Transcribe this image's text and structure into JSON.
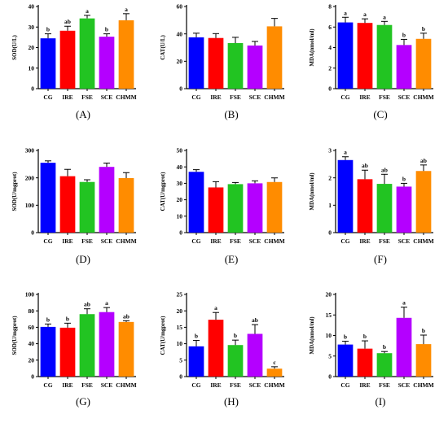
{
  "colors": [
    "#0000ff",
    "#ff0000",
    "#22c422",
    "#b400ff",
    "#ff8c00"
  ],
  "chart_data": [
    {
      "panel_label": "(A)",
      "type": "bar",
      "ylabel": "SOD(U/L)",
      "ylim": [
        0,
        40
      ],
      "yticks": [
        "0",
        "10",
        "20",
        "30",
        "40"
      ],
      "categories": [
        "CG",
        "IRE",
        "FSE",
        "SCE",
        "CHMM"
      ],
      "values": [
        24.5,
        28.2,
        34.2,
        25.3,
        33.3
      ],
      "errors": [
        2.2,
        2.2,
        1.5,
        1.4,
        3.2
      ],
      "significance": [
        "b",
        "ab",
        "a",
        "b",
        "a"
      ]
    },
    {
      "panel_label": "(B)",
      "type": "bar",
      "ylabel": "CAT(U/L)",
      "ylim": [
        0,
        60
      ],
      "yticks": [
        "0",
        "20",
        "40",
        "60"
      ],
      "categories": [
        "CG",
        "IRE",
        "FSE",
        "SCE",
        "CHMM"
      ],
      "values": [
        37.5,
        37.0,
        33.3,
        31.5,
        45.5
      ],
      "errors": [
        3.0,
        3.2,
        4.2,
        3.0,
        5.8
      ],
      "significance": [
        "",
        "",
        "",
        "",
        ""
      ]
    },
    {
      "panel_label": "(C)",
      "type": "bar",
      "ylabel": "MDA(nmol/ml)",
      "ylim": [
        0,
        8
      ],
      "yticks": [
        "0",
        "2",
        "4",
        "6",
        "8"
      ],
      "categories": [
        "CG",
        "IRE",
        "FSE",
        "SCE",
        "CHMM"
      ],
      "values": [
        6.45,
        6.4,
        6.2,
        4.25,
        4.85
      ],
      "errors": [
        0.5,
        0.4,
        0.35,
        0.55,
        0.55
      ],
      "significance": [
        "a",
        "a",
        "a",
        "b",
        "b"
      ]
    },
    {
      "panel_label": "(D)",
      "type": "bar",
      "ylabel": "SOD(U/mgprot)",
      "ylim": [
        0,
        300
      ],
      "yticks": [
        "0",
        "100",
        "200",
        "300"
      ],
      "categories": [
        "CG",
        "IRE",
        "FSE",
        "SCE",
        "CHMM"
      ],
      "values": [
        255,
        206,
        185,
        240,
        199
      ],
      "errors": [
        7,
        25,
        8,
        14,
        20
      ],
      "significance": [
        "",
        "",
        "",
        "",
        ""
      ]
    },
    {
      "panel_label": "(E)",
      "type": "bar",
      "ylabel": "CAT(U/mgprot)",
      "ylim": [
        0,
        50
      ],
      "yticks": [
        "0",
        "10",
        "20",
        "30",
        "40",
        "50"
      ],
      "categories": [
        "CG",
        "IRE",
        "FSE",
        "SCE",
        "CHMM"
      ],
      "values": [
        37.0,
        27.5,
        29.5,
        30.0,
        30.8
      ],
      "errors": [
        1.3,
        3.5,
        1.0,
        1.5,
        2.5
      ],
      "significance": [
        "",
        "",
        "",
        "",
        ""
      ]
    },
    {
      "panel_label": "(F)",
      "type": "bar",
      "ylabel": "MDA(nmol/ml)",
      "ylim": [
        0,
        3
      ],
      "yticks": [
        "0",
        "1",
        "2",
        "3"
      ],
      "categories": [
        "CG",
        "IRE",
        "FSE",
        "SCE",
        "CHMM"
      ],
      "values": [
        2.65,
        1.95,
        1.78,
        1.68,
        2.25
      ],
      "errors": [
        0.12,
        0.33,
        0.35,
        0.12,
        0.22
      ],
      "significance": [
        "a",
        "ab",
        "ab",
        "b",
        "ab"
      ]
    },
    {
      "panel_label": "(G)",
      "type": "bar",
      "ylabel": "SOD(U/mgprot)",
      "ylim": [
        0,
        100
      ],
      "yticks": [
        "0",
        "20",
        "40",
        "60",
        "80",
        "100"
      ],
      "categories": [
        "CG",
        "IRE",
        "FSE",
        "SCE",
        "CHMM"
      ],
      "values": [
        60.5,
        59.5,
        76.0,
        78.5,
        66.5
      ],
      "errors": [
        3.5,
        5.5,
        6.5,
        5.5,
        1.5
      ],
      "significance": [
        "b",
        "b",
        "ab",
        "a",
        "ab"
      ]
    },
    {
      "panel_label": "(H)",
      "type": "bar",
      "ylabel": "CAT(U/mgprot)",
      "ylim": [
        0,
        25
      ],
      "yticks": [
        "0",
        "5",
        "10",
        "15",
        "20",
        "25"
      ],
      "categories": [
        "CG",
        "IRE",
        "FSE",
        "SCE",
        "CHMM"
      ],
      "values": [
        9.2,
        17.3,
        9.6,
        13.0,
        2.4
      ],
      "errors": [
        1.8,
        2.2,
        1.5,
        2.8,
        0.6
      ],
      "significance": [
        "b",
        "a",
        "b",
        "ab",
        "c"
      ]
    },
    {
      "panel_label": "(I)",
      "type": "bar",
      "ylabel": "MDA(nmol/ml)",
      "ylim": [
        0,
        20
      ],
      "yticks": [
        "0",
        "5",
        "10",
        "15",
        "20"
      ],
      "categories": [
        "CG",
        "IRE",
        "FSE",
        "SCE",
        "CHMM"
      ],
      "values": [
        7.8,
        6.8,
        5.7,
        14.3,
        7.9
      ],
      "errors": [
        0.8,
        1.9,
        0.4,
        2.6,
        2.2
      ],
      "significance": [
        "b",
        "b",
        "b",
        "a",
        "b"
      ]
    }
  ]
}
